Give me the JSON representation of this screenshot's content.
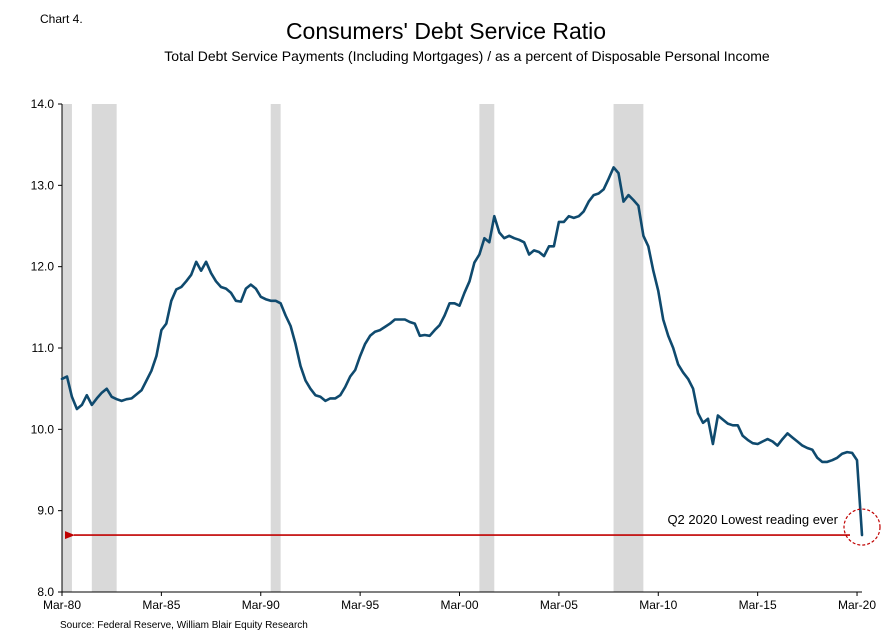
{
  "chart_label": "Chart 4.",
  "title": "Consumers' Debt Service Ratio",
  "subtitle": "Total Debt Service Payments (Including Mortgages) / as a percent of Disposable Personal Income",
  "source": "Source: Federal Reserve, William Blair Equity Research",
  "chart_data": {
    "type": "line",
    "title": "Consumers' Debt Service Ratio",
    "xlabel": "",
    "ylabel": "",
    "ylim": [
      8.0,
      14.0
    ],
    "xlim": [
      "1980-03",
      "2020-06"
    ],
    "y_ticks": [
      "14.0",
      "13.0",
      "12.0",
      "11.0",
      "10.0",
      "9.0",
      "8.0"
    ],
    "x_ticks": [
      {
        "label": "Mar-80",
        "date": "1980-03"
      },
      {
        "label": "Mar-85",
        "date": "1985-03"
      },
      {
        "label": "Mar-90",
        "date": "1990-03"
      },
      {
        "label": "Mar-95",
        "date": "1995-03"
      },
      {
        "label": "Mar-00",
        "date": "2000-03"
      },
      {
        "label": "Mar-05",
        "date": "2005-03"
      },
      {
        "label": "Mar-10",
        "date": "2010-03"
      },
      {
        "label": "Mar-15",
        "date": "2015-03"
      },
      {
        "label": "Mar-20",
        "date": "2020-03"
      }
    ],
    "recessions": [
      {
        "start": "1980-03",
        "end": "1980-09"
      },
      {
        "start": "1981-09",
        "end": "1982-12"
      },
      {
        "start": "1990-09",
        "end": "1991-03"
      },
      {
        "start": "2001-03",
        "end": "2001-12"
      },
      {
        "start": "2007-12",
        "end": "2009-06"
      }
    ],
    "series": [
      {
        "color": "#0f4a6e",
        "points": [
          [
            "1980-03",
            10.62
          ],
          [
            "1980-06",
            10.65
          ],
          [
            "1980-09",
            10.4
          ],
          [
            "1980-12",
            10.25
          ],
          [
            "1981-03",
            10.3
          ],
          [
            "1981-06",
            10.42
          ],
          [
            "1981-09",
            10.3
          ],
          [
            "1981-12",
            10.38
          ],
          [
            "1982-03",
            10.45
          ],
          [
            "1982-06",
            10.5
          ],
          [
            "1982-09",
            10.4
          ],
          [
            "1982-12",
            10.37
          ],
          [
            "1983-03",
            10.35
          ],
          [
            "1983-06",
            10.37
          ],
          [
            "1983-09",
            10.38
          ],
          [
            "1983-12",
            10.43
          ],
          [
            "1984-03",
            10.48
          ],
          [
            "1984-06",
            10.6
          ],
          [
            "1984-09",
            10.72
          ],
          [
            "1984-12",
            10.9
          ],
          [
            "1985-03",
            11.22
          ],
          [
            "1985-06",
            11.3
          ],
          [
            "1985-09",
            11.58
          ],
          [
            "1985-12",
            11.72
          ],
          [
            "1986-03",
            11.75
          ],
          [
            "1986-06",
            11.82
          ],
          [
            "1986-09",
            11.9
          ],
          [
            "1986-12",
            12.06
          ],
          [
            "1987-03",
            11.95
          ],
          [
            "1987-06",
            12.06
          ],
          [
            "1987-09",
            11.92
          ],
          [
            "1987-12",
            11.82
          ],
          [
            "1988-03",
            11.75
          ],
          [
            "1988-06",
            11.73
          ],
          [
            "1988-09",
            11.68
          ],
          [
            "1988-12",
            11.58
          ],
          [
            "1989-03",
            11.57
          ],
          [
            "1989-06",
            11.73
          ],
          [
            "1989-09",
            11.78
          ],
          [
            "1989-12",
            11.73
          ],
          [
            "1990-03",
            11.63
          ],
          [
            "1990-06",
            11.6
          ],
          [
            "1990-09",
            11.58
          ],
          [
            "1990-12",
            11.58
          ],
          [
            "1991-03",
            11.55
          ],
          [
            "1991-06",
            11.4
          ],
          [
            "1991-09",
            11.27
          ],
          [
            "1991-12",
            11.05
          ],
          [
            "1992-03",
            10.78
          ],
          [
            "1992-06",
            10.6
          ],
          [
            "1992-09",
            10.5
          ],
          [
            "1992-12",
            10.42
          ],
          [
            "1993-03",
            10.4
          ],
          [
            "1993-06",
            10.35
          ],
          [
            "1993-09",
            10.38
          ],
          [
            "1993-12",
            10.38
          ],
          [
            "1994-03",
            10.42
          ],
          [
            "1994-06",
            10.52
          ],
          [
            "1994-09",
            10.65
          ],
          [
            "1994-12",
            10.73
          ],
          [
            "1995-03",
            10.9
          ],
          [
            "1995-06",
            11.05
          ],
          [
            "1995-09",
            11.15
          ],
          [
            "1995-12",
            11.2
          ],
          [
            "1996-03",
            11.22
          ],
          [
            "1996-06",
            11.26
          ],
          [
            "1996-09",
            11.3
          ],
          [
            "1996-12",
            11.35
          ],
          [
            "1997-03",
            11.35
          ],
          [
            "1997-06",
            11.35
          ],
          [
            "1997-09",
            11.32
          ],
          [
            "1997-12",
            11.3
          ],
          [
            "1998-03",
            11.15
          ],
          [
            "1998-06",
            11.16
          ],
          [
            "1998-09",
            11.15
          ],
          [
            "1998-12",
            11.22
          ],
          [
            "1999-03",
            11.28
          ],
          [
            "1999-06",
            11.4
          ],
          [
            "1999-09",
            11.55
          ],
          [
            "1999-12",
            11.55
          ],
          [
            "2000-03",
            11.52
          ],
          [
            "2000-06",
            11.68
          ],
          [
            "2000-09",
            11.82
          ],
          [
            "2000-12",
            12.05
          ],
          [
            "2001-03",
            12.15
          ],
          [
            "2001-06",
            12.35
          ],
          [
            "2001-09",
            12.3
          ],
          [
            "2001-12",
            12.62
          ],
          [
            "2002-03",
            12.42
          ],
          [
            "2002-06",
            12.35
          ],
          [
            "2002-09",
            12.38
          ],
          [
            "2002-12",
            12.35
          ],
          [
            "2003-03",
            12.33
          ],
          [
            "2003-06",
            12.3
          ],
          [
            "2003-09",
            12.15
          ],
          [
            "2003-12",
            12.2
          ],
          [
            "2004-03",
            12.18
          ],
          [
            "2004-06",
            12.13
          ],
          [
            "2004-09",
            12.25
          ],
          [
            "2004-12",
            12.25
          ],
          [
            "2005-03",
            12.55
          ],
          [
            "2005-06",
            12.55
          ],
          [
            "2005-09",
            12.62
          ],
          [
            "2005-12",
            12.6
          ],
          [
            "2006-03",
            12.62
          ],
          [
            "2006-06",
            12.68
          ],
          [
            "2006-09",
            12.8
          ],
          [
            "2006-12",
            12.88
          ],
          [
            "2007-03",
            12.9
          ],
          [
            "2007-06",
            12.95
          ],
          [
            "2007-09",
            13.08
          ],
          [
            "2007-12",
            13.22
          ],
          [
            "2008-03",
            13.15
          ],
          [
            "2008-06",
            12.8
          ],
          [
            "2008-09",
            12.88
          ],
          [
            "2008-12",
            12.82
          ],
          [
            "2009-03",
            12.75
          ],
          [
            "2009-06",
            12.38
          ],
          [
            "2009-09",
            12.25
          ],
          [
            "2009-12",
            11.95
          ],
          [
            "2010-03",
            11.7
          ],
          [
            "2010-06",
            11.35
          ],
          [
            "2010-09",
            11.15
          ],
          [
            "2010-12",
            11.0
          ],
          [
            "2011-03",
            10.8
          ],
          [
            "2011-06",
            10.7
          ],
          [
            "2011-09",
            10.62
          ],
          [
            "2011-12",
            10.5
          ],
          [
            "2012-03",
            10.2
          ],
          [
            "2012-06",
            10.08
          ],
          [
            "2012-09",
            10.13
          ],
          [
            "2012-12",
            9.82
          ],
          [
            "2013-03",
            10.17
          ],
          [
            "2013-06",
            10.12
          ],
          [
            "2013-09",
            10.07
          ],
          [
            "2013-12",
            10.05
          ],
          [
            "2014-03",
            10.05
          ],
          [
            "2014-06",
            9.92
          ],
          [
            "2014-09",
            9.87
          ],
          [
            "2014-12",
            9.83
          ],
          [
            "2015-03",
            9.82
          ],
          [
            "2015-06",
            9.85
          ],
          [
            "2015-09",
            9.88
          ],
          [
            "2015-12",
            9.85
          ],
          [
            "2016-03",
            9.8
          ],
          [
            "2016-06",
            9.88
          ],
          [
            "2016-09",
            9.95
          ],
          [
            "2016-12",
            9.9
          ],
          [
            "2017-03",
            9.85
          ],
          [
            "2017-06",
            9.8
          ],
          [
            "2017-09",
            9.77
          ],
          [
            "2017-12",
            9.75
          ],
          [
            "2018-03",
            9.65
          ],
          [
            "2018-06",
            9.6
          ],
          [
            "2018-09",
            9.6
          ],
          [
            "2018-12",
            9.62
          ],
          [
            "2019-03",
            9.65
          ],
          [
            "2019-06",
            9.7
          ],
          [
            "2019-09",
            9.72
          ],
          [
            "2019-12",
            9.71
          ],
          [
            "2020-03",
            9.62
          ],
          [
            "2020-06",
            8.7
          ]
        ]
      }
    ],
    "annotation": {
      "text": "Q2 2020 Lowest reading ever",
      "point": [
        "2020-06",
        8.7
      ],
      "arrow_y": 8.7,
      "arrow_to": "1980-03",
      "color": "#c00000"
    }
  }
}
